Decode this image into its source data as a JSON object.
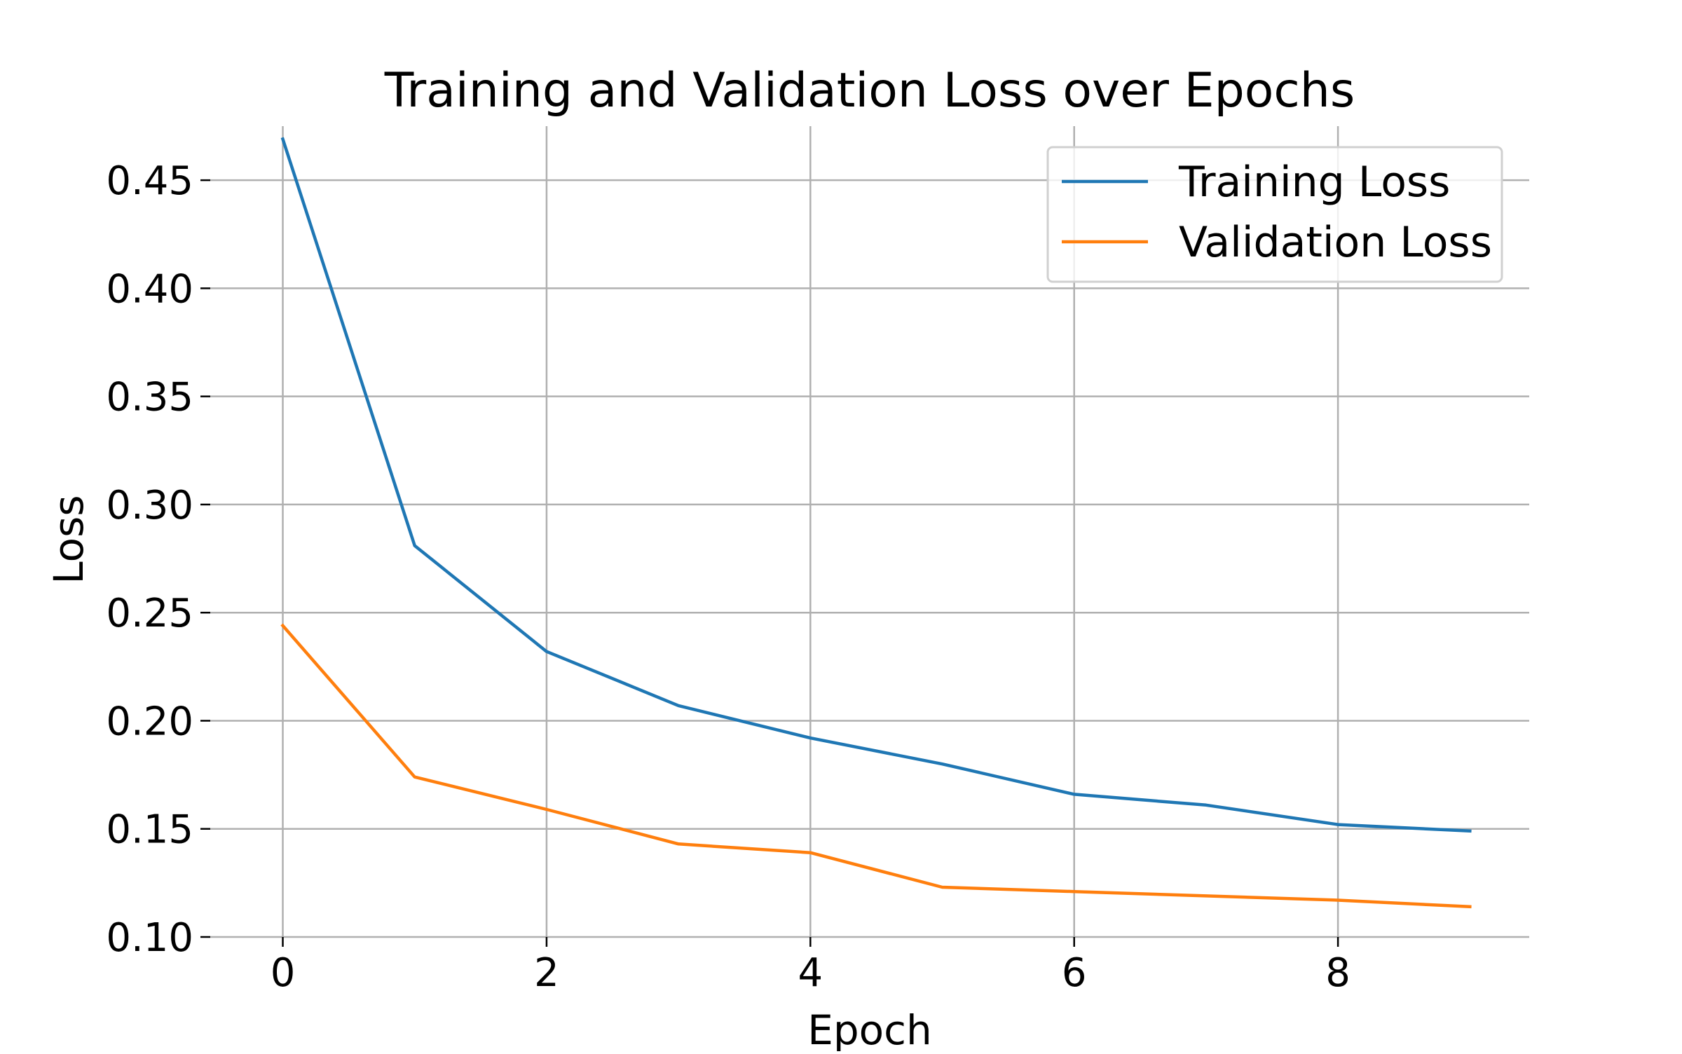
{
  "chart_data": {
    "type": "line",
    "title": "Training and Validation Loss over Epochs",
    "xlabel": "Epoch",
    "ylabel": "Loss",
    "xlim": [
      -0.55,
      9.45
    ],
    "ylim": [
      0.1,
      0.475
    ],
    "x_ticks": [
      "0",
      "2",
      "4",
      "6",
      "8"
    ],
    "y_ticks": [
      "0.10",
      "0.15",
      "0.20",
      "0.25",
      "0.30",
      "0.35",
      "0.40",
      "0.45"
    ],
    "grid": true,
    "legend_position": "top-right",
    "x": [
      0,
      1,
      2,
      3,
      4,
      5,
      6,
      7,
      8,
      9
    ],
    "series": [
      {
        "name": "Training Loss",
        "color": "#1f77b4",
        "values": [
          0.469,
          0.281,
          0.232,
          0.207,
          0.192,
          0.18,
          0.166,
          0.161,
          0.152,
          0.149
        ]
      },
      {
        "name": "Validation Loss",
        "color": "#ff7f0e",
        "values": [
          0.244,
          0.174,
          0.159,
          0.143,
          0.139,
          0.123,
          0.121,
          0.119,
          0.117,
          0.114
        ]
      }
    ]
  }
}
